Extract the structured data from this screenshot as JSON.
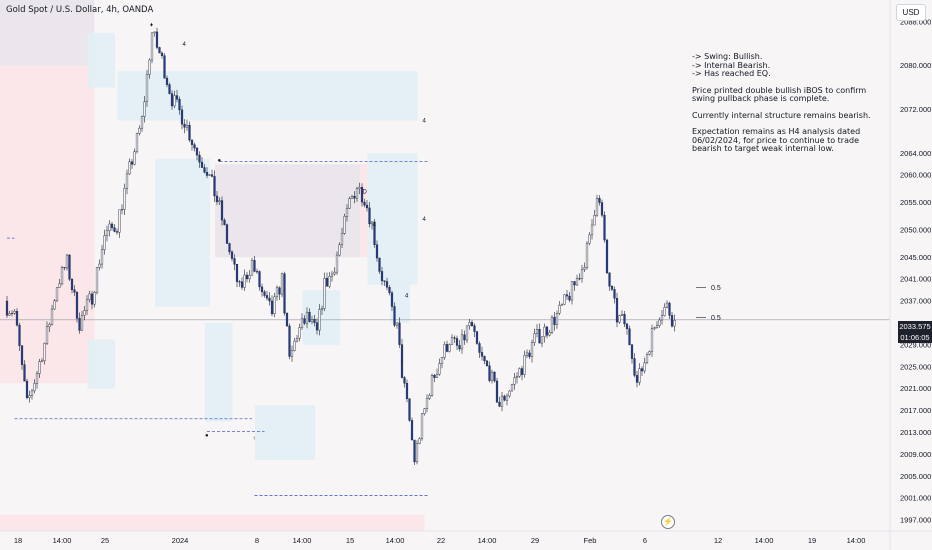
{
  "header": {
    "symbol": "Gold Spot / U.S. Dollar, 4h, OANDA",
    "currency": "USD"
  },
  "notes": [
    "-> Swing: Bullish.\n-> Internal Bearish.\n-> Has reached EQ.",
    "Price printed double bullish iBOS to confirm swing pullback phase is complete.",
    "Currently internal structure remains bearish.",
    "Expectation remains as H4 analysis dated 06/02/2024, for price to continue to trade bearish to target weak internal low."
  ],
  "last_price": {
    "value": "2033.575",
    "countdown": "01:06:05"
  },
  "colors": {
    "up": "#f4f4f8",
    "down": "#1f3a93",
    "zone_blue": "#e1f0f5",
    "zone_red": "#fbe6e8",
    "zone_gray": "#e9e4ea",
    "dashed": "#4a62c4"
  },
  "chart_data": {
    "type": "candlestick",
    "symbol": "XAUUSD",
    "timeframe": "4h",
    "ylim": [
      1995,
      2092
    ],
    "y_ticks": [
      "2088.000",
      "2080.000",
      "2072.000",
      "2064.000",
      "2060.000",
      "2055.000",
      "2050.000",
      "2045.000",
      "2041.000",
      "2037.000",
      "2033.575",
      "2029.000",
      "2025.000",
      "2021.000",
      "2017.000",
      "2013.000",
      "2009.000",
      "2005.000",
      "2001.000",
      "1997.000"
    ],
    "x_ticks": [
      "18",
      "14:00",
      "25",
      "2024",
      "8",
      "14:00",
      "15",
      "14:00",
      "22",
      "14:00",
      "29",
      "Feb",
      "6",
      "12",
      "14:00",
      "19",
      "14:00"
    ],
    "anchors": [
      [
        0,
        2036
      ],
      [
        3,
        2035
      ],
      [
        8,
        2018
      ],
      [
        12,
        2024
      ],
      [
        16,
        2031
      ],
      [
        20,
        2040
      ],
      [
        24,
        2044
      ],
      [
        29,
        2033
      ],
      [
        34,
        2038
      ],
      [
        39,
        2049
      ],
      [
        44,
        2051
      ],
      [
        49,
        2061
      ],
      [
        54,
        2070
      ],
      [
        58,
        2086
      ],
      [
        62,
        2081
      ],
      [
        66,
        2074
      ],
      [
        71,
        2070
      ],
      [
        76,
        2064
      ],
      [
        80,
        2061
      ],
      [
        85,
        2054
      ],
      [
        89,
        2046
      ],
      [
        93,
        2039
      ],
      [
        98,
        2044
      ],
      [
        103,
        2037
      ],
      [
        106,
        2035
      ],
      [
        110,
        2041
      ],
      [
        113,
        2026
      ],
      [
        116,
        2031
      ],
      [
        120,
        2034
      ],
      [
        124,
        2031
      ],
      [
        127,
        2040
      ],
      [
        130,
        2042
      ],
      [
        134,
        2049
      ],
      [
        137,
        2055
      ],
      [
        140,
        2058
      ],
      [
        143,
        2056
      ],
      [
        146,
        2051
      ],
      [
        149,
        2043
      ],
      [
        153,
        2037
      ],
      [
        156,
        2032
      ],
      [
        158,
        2024
      ],
      [
        161,
        2015
      ],
      [
        163,
        2008
      ],
      [
        166,
        2015
      ],
      [
        169,
        2021
      ],
      [
        173,
        2026
      ],
      [
        177,
        2030
      ],
      [
        181,
        2028
      ],
      [
        185,
        2033
      ],
      [
        189,
        2027
      ],
      [
        193,
        2024
      ],
      [
        197,
        2018
      ],
      [
        201,
        2021
      ],
      [
        206,
        2025
      ],
      [
        211,
        2030
      ],
      [
        216,
        2032
      ],
      [
        221,
        2035
      ],
      [
        226,
        2039
      ],
      [
        230,
        2043
      ],
      [
        233,
        2048
      ],
      [
        236,
        2057
      ],
      [
        238,
        2052
      ],
      [
        240,
        2042
      ],
      [
        242,
        2038
      ],
      [
        244,
        2034
      ],
      [
        247,
        2033
      ],
      [
        250,
        2028
      ],
      [
        252,
        2022
      ],
      [
        255,
        2026
      ],
      [
        258,
        2031
      ],
      [
        261,
        2035
      ],
      [
        264,
        2036
      ],
      [
        267,
        2033
      ]
    ],
    "candle_count": 268,
    "levels": [
      {
        "label": "0.5",
        "price": 2039.5
      },
      {
        "label": "0.5",
        "price": 2034.0
      }
    ],
    "zones": [
      {
        "color": "gray",
        "x0": 0,
        "x1": 35,
        "p0": 2080,
        "p1": 2092
      },
      {
        "color": "red",
        "x0": 0,
        "x1": 35,
        "p0": 2022,
        "p1": 2080
      },
      {
        "color": "blue",
        "x0": 35,
        "x1": 46,
        "p0": 2021,
        "p1": 2030
      },
      {
        "color": "blue",
        "x0": 35,
        "x1": 46,
        "p0": 2076,
        "p1": 2086
      },
      {
        "color": "blue",
        "x0": 47,
        "x1": 167,
        "p0": 2070,
        "p1": 2079
      },
      {
        "color": "blue",
        "x0": 62,
        "x1": 84,
        "p0": 2036,
        "p1": 2063
      },
      {
        "color": "blue",
        "x0": 82,
        "x1": 93,
        "p0": 2015,
        "p1": 2033
      },
      {
        "color": "gray",
        "x0": 86,
        "x1": 144,
        "p0": 2045,
        "p1": 2062
      },
      {
        "color": "red",
        "x0": 144,
        "x1": 147,
        "p0": 2045,
        "p1": 2062
      },
      {
        "color": "blue",
        "x0": 102,
        "x1": 126,
        "p0": 2008,
        "p1": 2018
      },
      {
        "color": "blue",
        "x0": 121,
        "x1": 136,
        "p0": 2029,
        "p1": 2039
      },
      {
        "color": "blue",
        "x0": 147,
        "x1": 167,
        "p0": 2040,
        "p1": 2064
      },
      {
        "color": "blue",
        "x0": 156,
        "x1": 164,
        "p0": 2033,
        "p1": 2041
      },
      {
        "color": "red",
        "x0": 0,
        "x1": 167,
        "p0": 1995,
        "p1": 1998
      }
    ],
    "dashed_lines": [
      {
        "price": 2048.5,
        "x0": 0,
        "x1": 3
      },
      {
        "price": 2015.5,
        "x0": 3,
        "x1": 98
      },
      {
        "price": 2013.2,
        "x0": 80,
        "x1": 103
      },
      {
        "price": 2062.5,
        "x0": 85,
        "x1": 169
      },
      {
        "price": 2001.5,
        "x0": 99,
        "x1": 169
      }
    ]
  }
}
